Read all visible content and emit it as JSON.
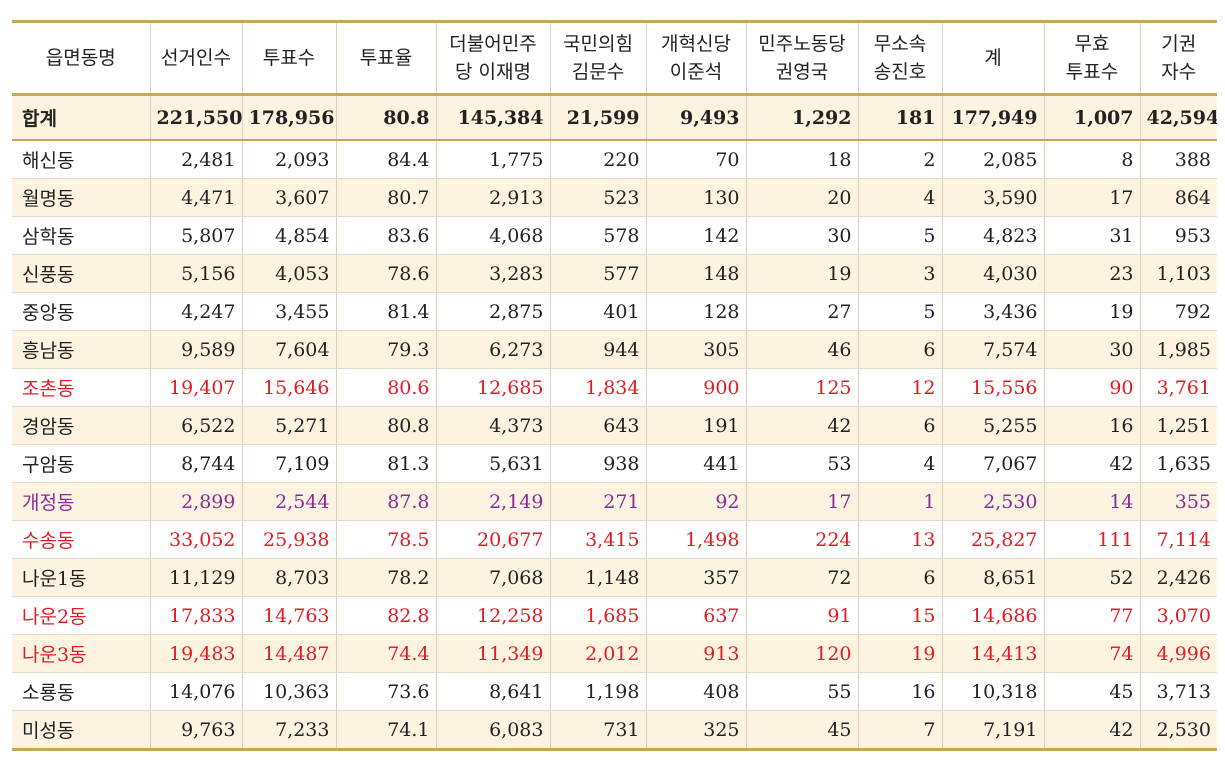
{
  "headers": [
    [
      "읍면동명"
    ],
    [
      "선거인수"
    ],
    [
      "투표수"
    ],
    [
      "투표율"
    ],
    [
      "더불어민주",
      "당 이재명"
    ],
    [
      "국민의힘",
      "김문수"
    ],
    [
      "개혁신당",
      "이준석"
    ],
    [
      "민주노동당",
      "권영국"
    ],
    [
      "무소속",
      "송진호"
    ],
    [
      "계"
    ],
    [
      "무효",
      "투표수"
    ],
    [
      "기권",
      "자수"
    ]
  ],
  "rows": [
    {
      "style": "total",
      "cells": [
        "합계",
        "221,550",
        "178,956",
        "80.8",
        "145,384",
        "21,599",
        "9,493",
        "1,292",
        "181",
        "177,949",
        "1,007",
        "42,594"
      ]
    },
    {
      "style": "normal",
      "cells": [
        "해신동",
        "2,481",
        "2,093",
        "84.4",
        "1,775",
        "220",
        "70",
        "18",
        "2",
        "2,085",
        "8",
        "388"
      ]
    },
    {
      "style": "normal",
      "cells": [
        "월명동",
        "4,471",
        "3,607",
        "80.7",
        "2,913",
        "523",
        "130",
        "20",
        "4",
        "3,590",
        "17",
        "864"
      ]
    },
    {
      "style": "normal",
      "cells": [
        "삼학동",
        "5,807",
        "4,854",
        "83.6",
        "4,068",
        "578",
        "142",
        "30",
        "5",
        "4,823",
        "31",
        "953"
      ]
    },
    {
      "style": "normal",
      "cells": [
        "신풍동",
        "5,156",
        "4,053",
        "78.6",
        "3,283",
        "577",
        "148",
        "19",
        "3",
        "4,030",
        "23",
        "1,103"
      ]
    },
    {
      "style": "normal",
      "cells": [
        "중앙동",
        "4,247",
        "3,455",
        "81.4",
        "2,875",
        "401",
        "128",
        "27",
        "5",
        "3,436",
        "19",
        "792"
      ]
    },
    {
      "style": "normal",
      "cells": [
        "흥남동",
        "9,589",
        "7,604",
        "79.3",
        "6,273",
        "944",
        "305",
        "46",
        "6",
        "7,574",
        "30",
        "1,985"
      ]
    },
    {
      "style": "red",
      "cells": [
        "조촌동",
        "19,407",
        "15,646",
        "80.6",
        "12,685",
        "1,834",
        "900",
        "125",
        "12",
        "15,556",
        "90",
        "3,761"
      ]
    },
    {
      "style": "normal",
      "cells": [
        "경암동",
        "6,522",
        "5,271",
        "80.8",
        "4,373",
        "643",
        "191",
        "42",
        "6",
        "5,255",
        "16",
        "1,251"
      ]
    },
    {
      "style": "normal",
      "cells": [
        "구암동",
        "8,744",
        "7,109",
        "81.3",
        "5,631",
        "938",
        "441",
        "53",
        "4",
        "7,067",
        "42",
        "1,635"
      ]
    },
    {
      "style": "purple",
      "cells": [
        "개정동",
        "2,899",
        "2,544",
        "87.8",
        "2,149",
        "271",
        "92",
        "17",
        "1",
        "2,530",
        "14",
        "355"
      ]
    },
    {
      "style": "red",
      "cells": [
        "수송동",
        "33,052",
        "25,938",
        "78.5",
        "20,677",
        "3,415",
        "1,498",
        "224",
        "13",
        "25,827",
        "111",
        "7,114"
      ]
    },
    {
      "style": "normal",
      "cells": [
        "나운1동",
        "11,129",
        "8,703",
        "78.2",
        "7,068",
        "1,148",
        "357",
        "72",
        "6",
        "8,651",
        "52",
        "2,426"
      ]
    },
    {
      "style": "red",
      "cells": [
        "나운2동",
        "17,833",
        "14,763",
        "82.8",
        "12,258",
        "1,685",
        "637",
        "91",
        "15",
        "14,686",
        "77",
        "3,070"
      ]
    },
    {
      "style": "red",
      "cells": [
        "나운3동",
        "19,483",
        "14,487",
        "74.4",
        "11,349",
        "2,012",
        "913",
        "120",
        "19",
        "14,413",
        "74",
        "4,996"
      ]
    },
    {
      "style": "normal",
      "cells": [
        "소룡동",
        "14,076",
        "10,363",
        "73.6",
        "8,641",
        "1,198",
        "408",
        "55",
        "16",
        "10,318",
        "45",
        "3,713"
      ]
    },
    {
      "style": "normal",
      "cells": [
        "미성동",
        "9,763",
        "7,233",
        "74.1",
        "6,083",
        "731",
        "325",
        "45",
        "7",
        "7,191",
        "42",
        "2,530"
      ]
    }
  ],
  "colors": {
    "border_gold": "#c9a659",
    "stripe_beige": "#fcf3e1",
    "highlight_red": "#e31b23",
    "highlight_purple": "#8a2a9c"
  }
}
